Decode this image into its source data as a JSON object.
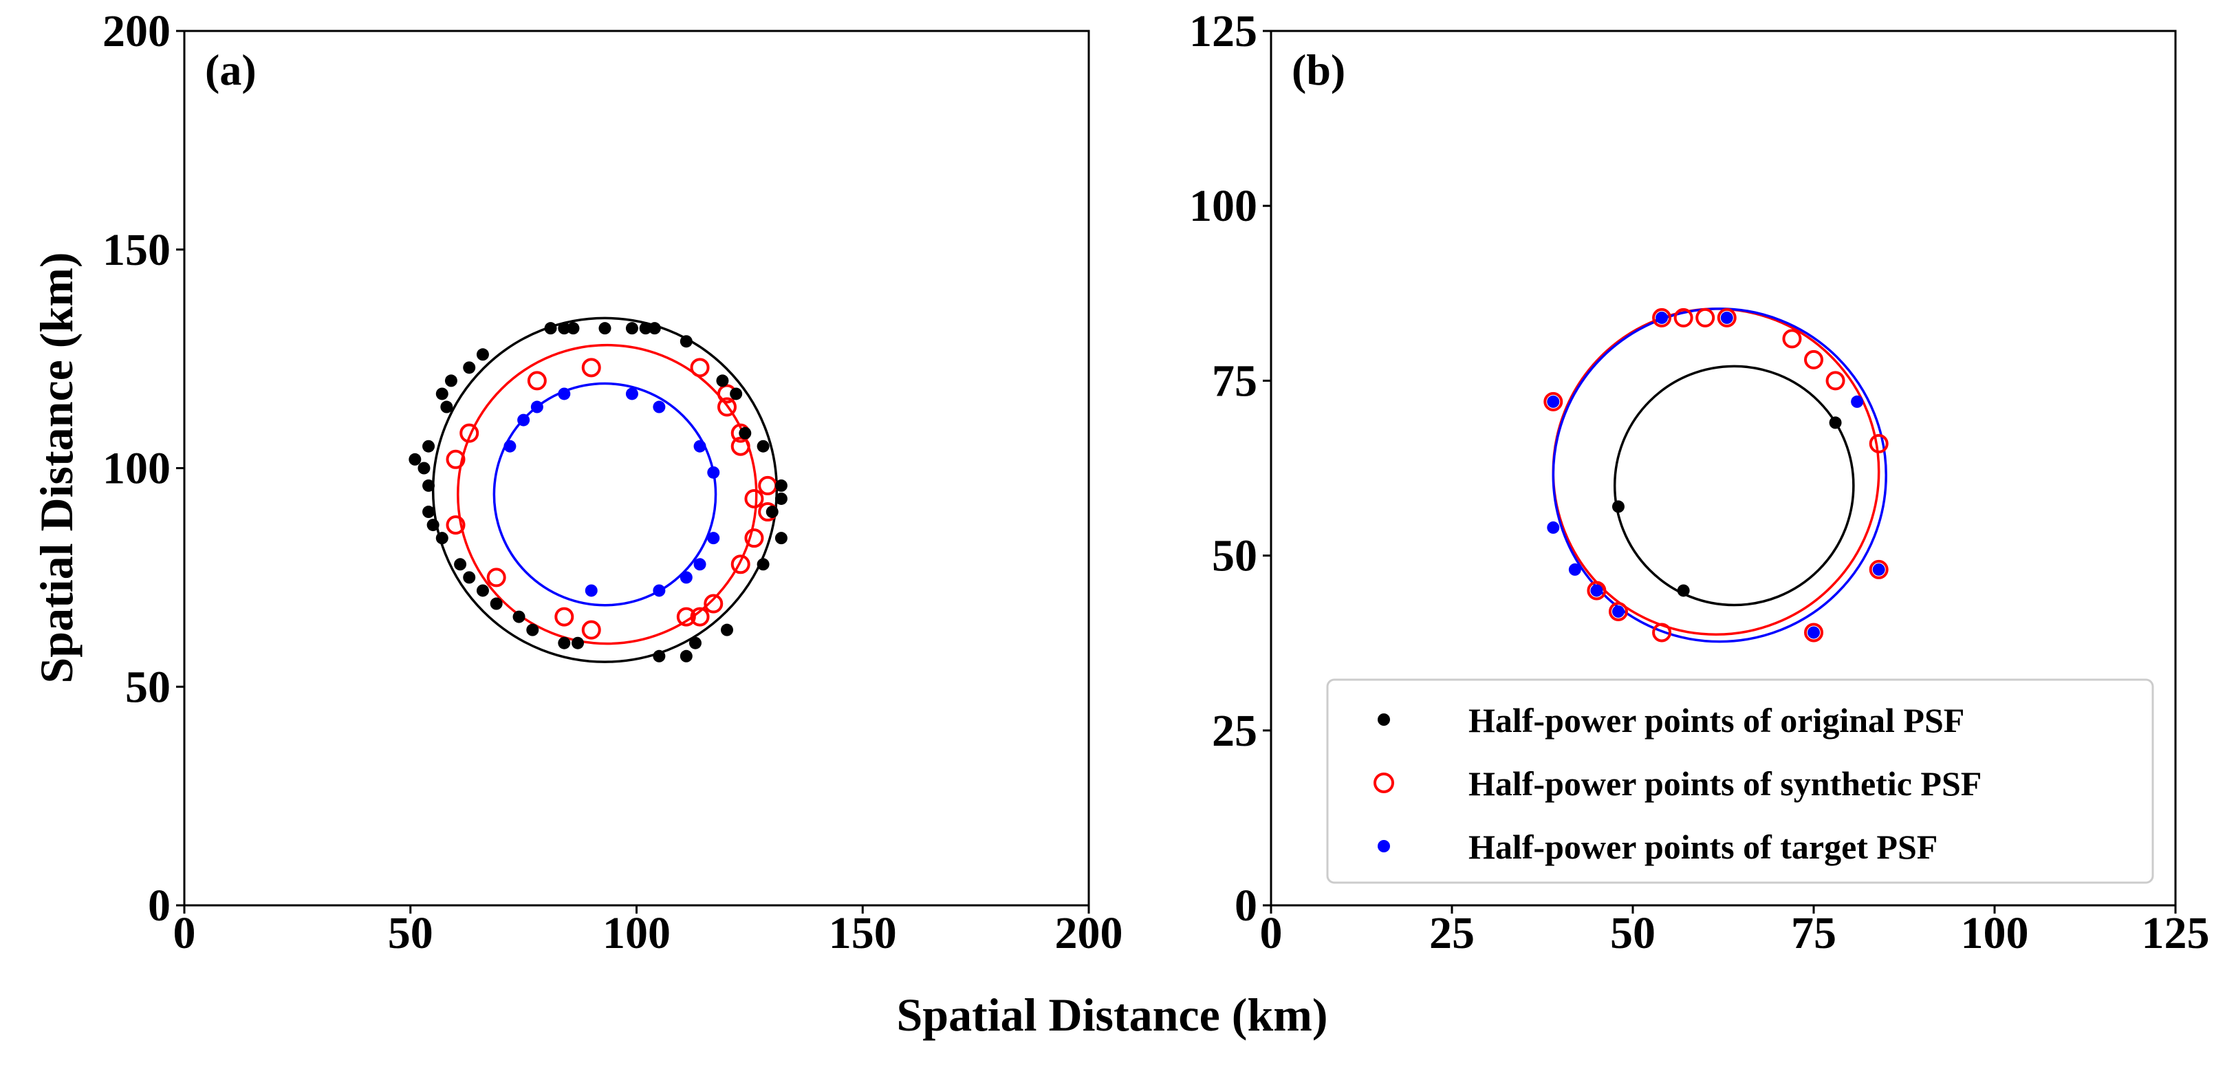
{
  "figure": {
    "xlabel": "Spatial Distance (km)",
    "ylabel": "Spatial Distance (km)"
  },
  "colors": {
    "original": "#000000",
    "synthetic": "#ff0000",
    "target": "#0000ff"
  },
  "legend": {
    "placement": "lower-right of panel (b)",
    "entries": [
      {
        "key": "original",
        "label": "Half-power points of original PSF"
      },
      {
        "key": "synthetic",
        "label": "Half-power points of synthetic PSF"
      },
      {
        "key": "target",
        "label": "Half-power points of target PSF"
      }
    ]
  },
  "chart_data": [
    {
      "type": "scatter",
      "panel": "a",
      "label": "(a)",
      "xlim": [
        0,
        200
      ],
      "ylim": [
        0,
        200
      ],
      "xticks": [
        "0",
        "50",
        "100",
        "150",
        "200"
      ],
      "yticks": [
        "0",
        "50",
        "100",
        "150",
        "200"
      ],
      "series": [
        {
          "key": "original",
          "name": "Half-power points of original PSF",
          "marker": "filled-dot",
          "points": [
            [
              51,
              102
            ],
            [
              53,
              100
            ],
            [
              54,
              105
            ],
            [
              54,
              96
            ],
            [
              54,
              90
            ],
            [
              55,
              87
            ],
            [
              57,
              117
            ],
            [
              58,
              114
            ],
            [
              57,
              84
            ],
            [
              59,
              120
            ],
            [
              61,
              78
            ],
            [
              63,
              123
            ],
            [
              63,
              75
            ],
            [
              66,
              126
            ],
            [
              66,
              72
            ],
            [
              69,
              69
            ],
            [
              74,
              66
            ],
            [
              77,
              63
            ],
            [
              81,
              132
            ],
            [
              84,
              132
            ],
            [
              84,
              60
            ],
            [
              86,
              132
            ],
            [
              87,
              60
            ],
            [
              93,
              132
            ],
            [
              99,
              132
            ],
            [
              102,
              132
            ],
            [
              104,
              132
            ],
            [
              105,
              57
            ],
            [
              111,
              129
            ],
            [
              111,
              57
            ],
            [
              113,
              60
            ],
            [
              119,
              120
            ],
            [
              120,
              63
            ],
            [
              122,
              117
            ],
            [
              124,
              108
            ],
            [
              128,
              105
            ],
            [
              128,
              78
            ],
            [
              130,
              90
            ],
            [
              132,
              96
            ],
            [
              132,
              93
            ],
            [
              132,
              84
            ]
          ],
          "circle": {
            "cx": 93,
            "cy": 95,
            "r": 38
          }
        },
        {
          "key": "synthetic",
          "name": "Half-power points of synthetic PSF",
          "marker": "hollow-circle",
          "points": [
            [
              60,
              102
            ],
            [
              60,
              87
            ],
            [
              63,
              108
            ],
            [
              69,
              75
            ],
            [
              78,
              120
            ],
            [
              84,
              66
            ],
            [
              90,
              123
            ],
            [
              90,
              63
            ],
            [
              111,
              66
            ],
            [
              114,
              123
            ],
            [
              114,
              66
            ],
            [
              117,
              69
            ],
            [
              120,
              117
            ],
            [
              120,
              114
            ],
            [
              123,
              108
            ],
            [
              123,
              105
            ],
            [
              123,
              78
            ],
            [
              126,
              93
            ],
            [
              126,
              84
            ],
            [
              129,
              96
            ],
            [
              129,
              90
            ]
          ],
          "circle": {
            "cx": 93.5,
            "cy": 94,
            "r": 33
          }
        },
        {
          "key": "target",
          "name": "Half-power points of target PSF",
          "marker": "filled-dot",
          "points": [
            [
              72,
              105
            ],
            [
              75,
              111
            ],
            [
              78,
              114
            ],
            [
              84,
              117
            ],
            [
              90,
              72
            ],
            [
              99,
              117
            ],
            [
              105,
              114
            ],
            [
              105,
              72
            ],
            [
              111,
              75
            ],
            [
              114,
              105
            ],
            [
              114,
              78
            ],
            [
              117,
              99
            ],
            [
              117,
              84
            ]
          ],
          "circle": {
            "cx": 93,
            "cy": 94,
            "r": 24.5
          }
        }
      ]
    },
    {
      "type": "scatter",
      "panel": "b",
      "label": "(b)",
      "xlim": [
        0,
        125
      ],
      "ylim": [
        0,
        125
      ],
      "xticks": [
        "0",
        "25",
        "50",
        "75",
        "100",
        "125"
      ],
      "yticks": [
        "0",
        "25",
        "50",
        "75",
        "100",
        "125"
      ],
      "series": [
        {
          "key": "original",
          "name": "Half-power points of original PSF",
          "marker": "filled-dot",
          "points": [
            [
              48,
              57
            ],
            [
              57,
              45
            ],
            [
              78,
              69
            ]
          ],
          "circle": {
            "cx": 64,
            "cy": 60,
            "r": 16.5
          }
        },
        {
          "key": "synthetic",
          "name": "Half-power points of synthetic PSF",
          "marker": "hollow-circle",
          "points": [
            [
              39,
              72
            ],
            [
              45,
              45
            ],
            [
              48,
              42
            ],
            [
              54,
              84
            ],
            [
              54,
              39
            ],
            [
              57,
              84
            ],
            [
              60,
              84
            ],
            [
              63,
              84
            ],
            [
              72,
              81
            ],
            [
              75,
              78
            ],
            [
              75,
              39
            ],
            [
              78,
              75
            ],
            [
              84,
              66
            ],
            [
              84,
              48
            ]
          ],
          "circle": {
            "cx": 61.5,
            "cy": 62,
            "r": 22.5
          }
        },
        {
          "key": "target",
          "name": "Half-power points of target PSF",
          "marker": "filled-dot",
          "points": [
            [
              39,
              72
            ],
            [
              39,
              54
            ],
            [
              42,
              48
            ],
            [
              45,
              45
            ],
            [
              48,
              42
            ],
            [
              54,
              84
            ],
            [
              63,
              84
            ],
            [
              75,
              39
            ],
            [
              81,
              72
            ],
            [
              84,
              48
            ]
          ],
          "circle": {
            "cx": 62,
            "cy": 61.5,
            "r": 23
          }
        }
      ]
    }
  ]
}
